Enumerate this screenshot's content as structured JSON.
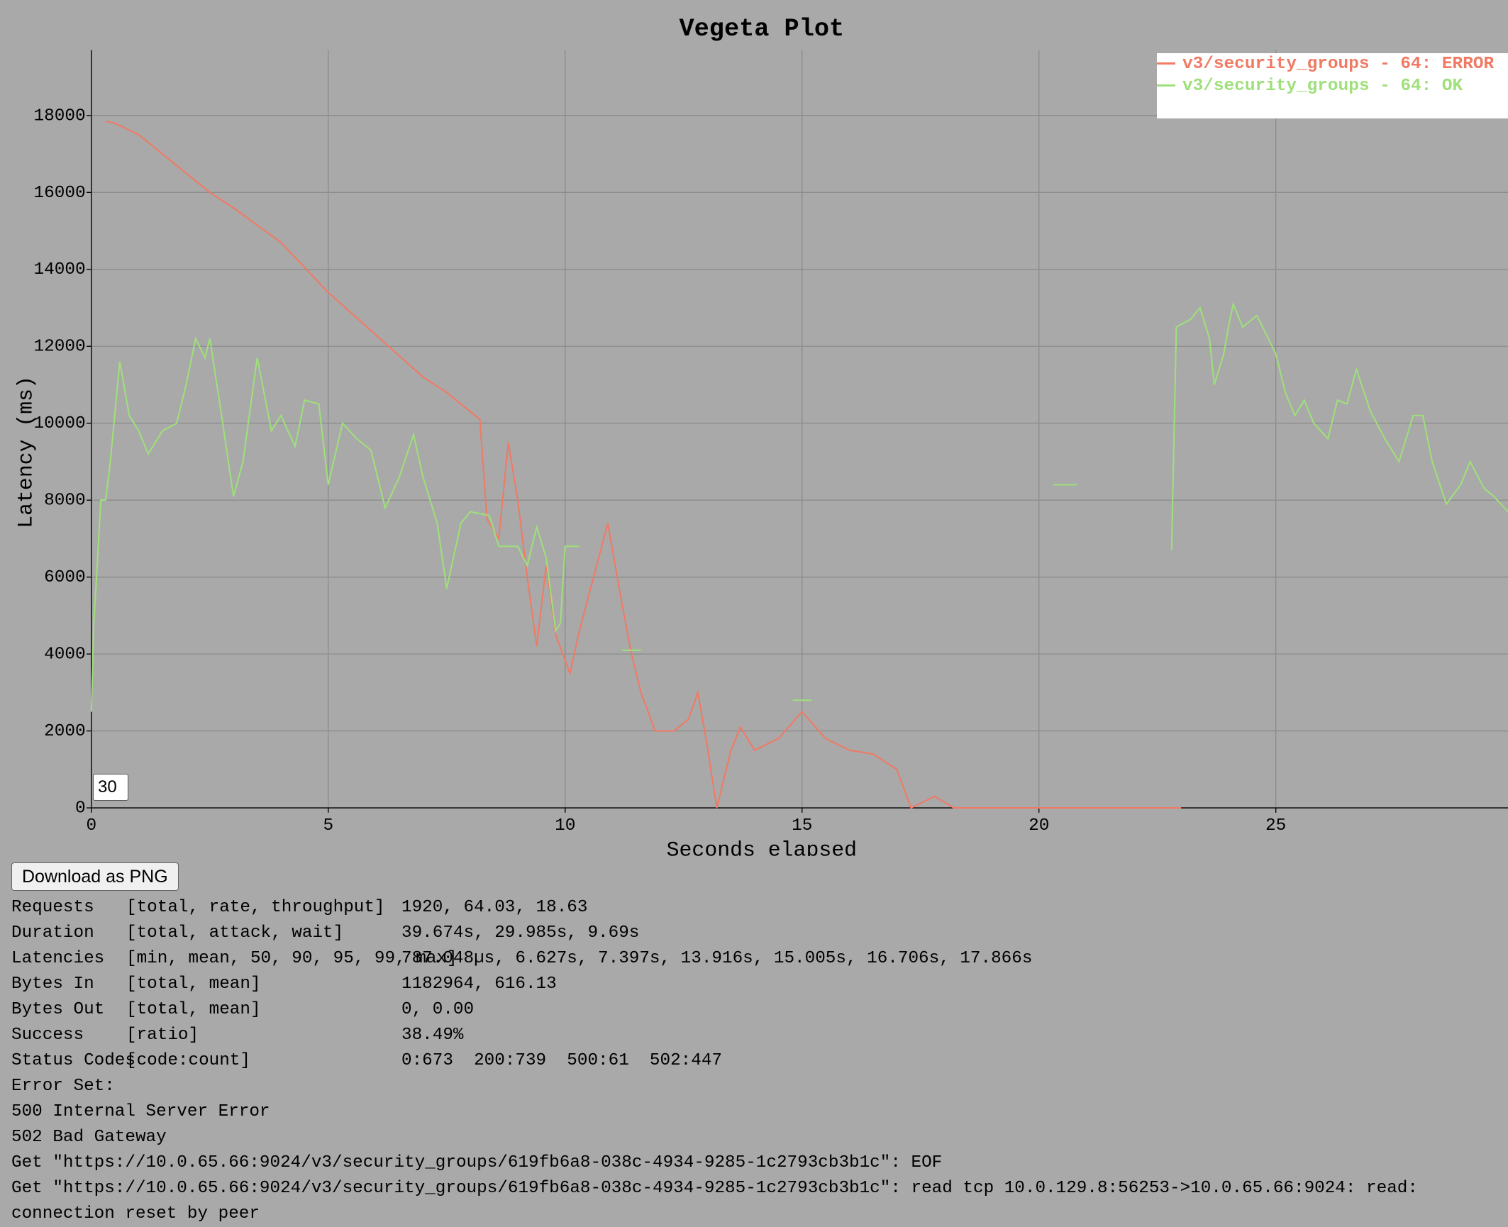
{
  "chart_data": {
    "type": "line",
    "title": "Vegeta Plot",
    "x_label": "Seconds elapsed",
    "y_label": "Latency (ms)",
    "xlim": [
      0,
      29.9
    ],
    "ylim": [
      0,
      19700
    ],
    "xticks": [
      0,
      5,
      10,
      15,
      20,
      25
    ],
    "yticks": [
      0,
      2000,
      4000,
      6000,
      8000,
      10000,
      12000,
      14000,
      16000,
      18000
    ],
    "grid": true,
    "legend": "top-right",
    "series": [
      {
        "name": "v3/security_groups - 64: ERROR",
        "color": "#f07a64",
        "x": [
          0.3,
          0.5,
          1,
          1.5,
          2,
          2.5,
          3,
          4,
          5,
          6,
          7,
          7.5,
          8,
          8.2,
          8.35,
          8.6,
          8.8,
          9,
          9.2,
          9.4,
          9.6,
          9.8,
          10.1,
          10.3,
          10.6,
          10.9,
          11.2,
          11.4,
          11.6,
          11.9,
          12.3,
          12.6,
          12.8,
          13,
          13.2,
          13.5,
          13.7,
          14,
          14.5,
          15,
          15.5,
          16,
          16.5,
          17,
          17.3,
          17.8,
          18.2,
          23
        ],
        "values": [
          17850,
          17800,
          17500,
          17000,
          16500,
          16000,
          15600,
          14700,
          13400,
          12300,
          11200,
          10800,
          10300,
          10100,
          7500,
          7000,
          9500,
          8000,
          6000,
          4200,
          6300,
          4500,
          3500,
          4600,
          6000,
          7400,
          5300,
          4000,
          3000,
          2000,
          2000,
          2300,
          3000,
          1600,
          0,
          1500,
          2100,
          1500,
          1800,
          2500,
          1800,
          1500,
          1400,
          1000,
          0,
          300,
          0,
          0
        ]
      },
      {
        "name": "v3/security_groups - 64: OK",
        "color": "#9ee07a",
        "x": [
          0,
          0.05,
          0.1,
          0.2,
          0.3,
          0.4,
          0.6,
          0.8,
          1,
          1.2,
          1.5,
          1.8,
          2,
          2.2,
          2.4,
          2.5,
          2.7,
          3,
          3.2,
          3.5,
          3.8,
          4,
          4.3,
          4.5,
          4.8,
          5,
          5.3,
          5.6,
          5.9,
          6.2,
          6.5,
          6.8,
          7,
          7.3,
          7.5,
          7.8,
          8,
          8.4,
          8.6,
          9,
          9.2,
          9.4,
          9.6,
          9.8,
          9.9,
          10,
          10.3,
          10.8,
          11.2,
          11.6,
          12,
          14.8,
          15.2,
          16,
          20.3,
          20.8,
          21,
          22.8,
          22.9,
          23.2,
          23.4,
          23.6,
          23.7,
          23.9,
          24,
          24.1,
          24.3,
          24.6,
          25,
          25.2,
          25.4,
          25.6,
          25.8,
          26.1,
          26.3,
          26.5,
          26.7,
          27,
          27.3,
          27.6,
          27.9,
          28.1,
          28.3,
          28.6,
          28.9,
          29.1,
          29.4,
          29.6,
          29.9
        ],
        "values": [
          2500,
          4800,
          5800,
          8000,
          8000,
          9000,
          11600,
          10200,
          9800,
          9200,
          9800,
          10000,
          11000,
          12200,
          11700,
          12200,
          10600,
          8100,
          9000,
          11700,
          9800,
          10200,
          9400,
          10600,
          10500,
          8400,
          10000,
          9600,
          9300,
          7800,
          8600,
          9700,
          8600,
          7400,
          5700,
          7400,
          7700,
          7600,
          6800,
          6800,
          6300,
          7300,
          6500,
          4600,
          4800,
          6800,
          6800,
          null,
          4100,
          4100,
          null,
          2800,
          2800,
          null,
          8400,
          8400,
          null,
          6700,
          12500,
          12700,
          13000,
          12200,
          11000,
          11800,
          12500,
          13100,
          12500,
          12800,
          11800,
          10800,
          10200,
          10600,
          10000,
          9600,
          10600,
          10500,
          11400,
          10300,
          9600,
          9000,
          10200,
          10200,
          9000,
          7900,
          8400,
          9000,
          8300,
          8100,
          7700
        ]
      }
    ]
  },
  "controls": {
    "input_value": "30",
    "button": "Download as PNG"
  },
  "report": {
    "rows": [
      [
        "Requests",
        "[total, rate, throughput]",
        "1920, 64.03, 18.63"
      ],
      [
        "Duration",
        "[total, attack, wait]",
        "39.674s, 29.985s, 9.69s"
      ],
      [
        "Latencies",
        "[min, mean, 50, 90, 95, 99, max]",
        "787.048µs, 6.627s, 7.397s, 13.916s, 15.005s, 16.706s, 17.866s"
      ],
      [
        "Bytes In",
        "[total, mean]",
        "1182964, 616.13"
      ],
      [
        "Bytes Out",
        "[total, mean]",
        "0, 0.00"
      ],
      [
        "Success",
        "[ratio]",
        "38.49%"
      ],
      [
        "Status Codes",
        "[code:count]",
        "0:673  200:739  500:61  502:447"
      ]
    ],
    "lines": [
      "Error Set:",
      "500 Internal Server Error",
      "502 Bad Gateway",
      "Get \"https://10.0.65.66:9024/v3/security_groups/619fb6a8-038c-4934-9285-1c2793cb3b1c\": EOF",
      "Get \"https://10.0.65.66:9024/v3/security_groups/619fb6a8-038c-4934-9285-1c2793cb3b1c\": read tcp 10.0.129.8:56253->10.0.65.66:9024: read: connection reset by peer"
    ]
  }
}
